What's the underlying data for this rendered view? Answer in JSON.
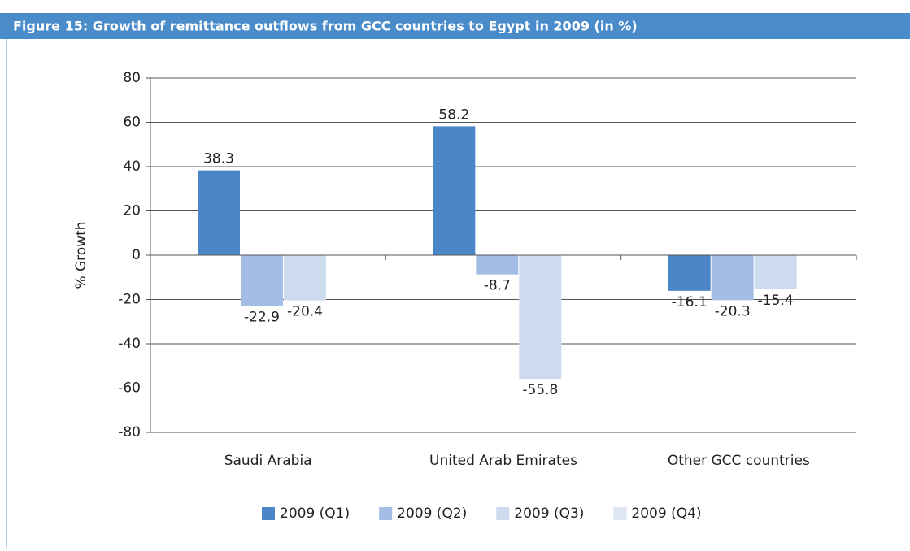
{
  "chart_data": {
    "type": "bar",
    "title": "Figure 15: Growth of remittance outflows from GCC countries to Egypt in 2009 (in %)",
    "y_label": "% Growth",
    "categories": [
      "Saudi Arabia",
      "United Arab Emirates",
      "Other GCC countries"
    ],
    "series": [
      {
        "name": "2009 (Q1)",
        "color": "#4a86c8",
        "values": [
          38.3,
          58.2,
          -16.1
        ]
      },
      {
        "name": "2009 (Q2)",
        "color": "#a4bde4",
        "values": [
          -22.9,
          -8.7,
          -20.3
        ]
      },
      {
        "name": "2009 (Q3)",
        "color": "#cddbef",
        "values": [
          -20.4,
          -55.8,
          -15.4
        ]
      },
      {
        "name": "2009 (Q4)",
        "color": "#dde6f3",
        "values": [
          null,
          null,
          null
        ]
      }
    ],
    "ylim": [
      -80,
      80
    ],
    "yticks": [
      -80,
      -60,
      -40,
      -20,
      0,
      20,
      40,
      60,
      80
    ],
    "grid": true,
    "legend": "bottom"
  }
}
